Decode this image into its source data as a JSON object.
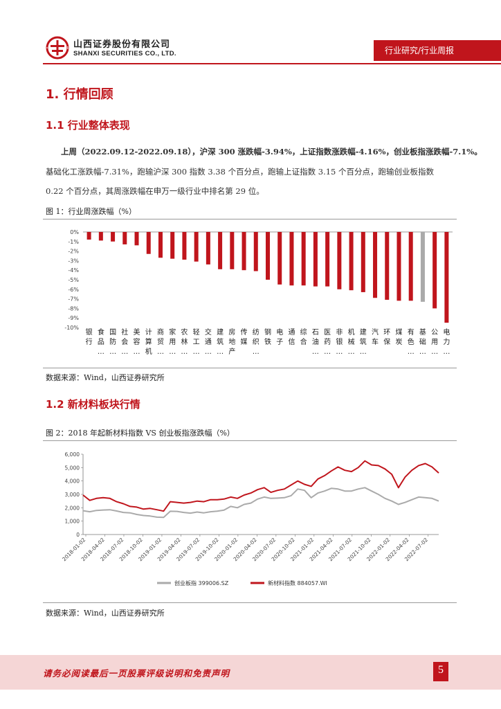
{
  "header": {
    "company_cn": "山西证券股份有限公司",
    "company_en": "SHANXI SECURITIES CO., LTD.",
    "tag": "行业研究/行业周报"
  },
  "section1": {
    "title": "1. 行情回顾"
  },
  "section1_1": {
    "title": "1.1  行业整体表现",
    "para_bold": "上周（2022.09.12-2022.09.18），沪深 300 涨跌幅-3.94%，上证指数涨跌幅-4.16%，创业板指涨跌幅-7.1%。",
    "para_line2": "基础化工涨跌幅-7.31%，跑输沪深 300 指数 3.38 个百分点，跑输上证指数 3.15 个百分点，跑输创业板指数",
    "para_line3": "0.22 个百分点，其周涨跌幅在申万一级行业中排名第 29 位。"
  },
  "figure1": {
    "title": "图 1：行业周涨跌幅（%）",
    "source": "数据来源：Wind，山西证券研究所"
  },
  "section1_2": {
    "title": "1.2 新材料板块行情"
  },
  "figure2": {
    "title": "图 2：2018 年起新材料指数 VS 创业板指涨跌幅（%）",
    "source": "数据来源：Wind，山西证券研究所"
  },
  "footer": {
    "disclaimer": "请务必阅读最后一页股票评级说明和免责声明",
    "page": "5"
  },
  "colors": {
    "accent": "#c0151c",
    "gray_series": "#aaaaaa",
    "highlight_bar": "#aaaaaa"
  },
  "chart_data": [
    {
      "type": "bar",
      "title": "行业周涨跌幅（%）",
      "ylim": [
        -10,
        0
      ],
      "yticks": [
        "0%",
        "-1%",
        "-2%",
        "-3%",
        "-4%",
        "-5%",
        "-6%",
        "-7%",
        "-8%",
        "-9%",
        "-10%"
      ],
      "categories": [
        "银行",
        "食品…",
        "国防…",
        "社会…",
        "美容…",
        "计算机",
        "商贸…",
        "家用…",
        "农林…",
        "轻工…",
        "交通…",
        "建筑…",
        "房地产",
        "传媒",
        "纺织…",
        "钢铁",
        "电子",
        "通信",
        "综合",
        "石油…",
        "医药…",
        "非银…",
        "机械…",
        "建筑…",
        "汽车",
        "环保",
        "煤炭",
        "有色…",
        "基础…",
        "公用…",
        "电力…"
      ],
      "labels": [
        [
          "银",
          "行",
          ""
        ],
        [
          "食",
          "品",
          "…"
        ],
        [
          "国",
          "防",
          "…"
        ],
        [
          "社",
          "会",
          "…"
        ],
        [
          "美",
          "容",
          "…"
        ],
        [
          "计",
          "算",
          "机"
        ],
        [
          "商",
          "贸",
          "…"
        ],
        [
          "家",
          "用",
          "…"
        ],
        [
          "农",
          "林",
          "…"
        ],
        [
          "轻",
          "工",
          "…"
        ],
        [
          "交",
          "通",
          "…"
        ],
        [
          "建",
          "筑",
          "…"
        ],
        [
          "房",
          "地",
          "产"
        ],
        [
          "传",
          "媒",
          ""
        ],
        [
          "纺",
          "织",
          "…"
        ],
        [
          "钢",
          "铁",
          ""
        ],
        [
          "电",
          "子",
          ""
        ],
        [
          "通",
          "信",
          ""
        ],
        [
          "综",
          "合",
          ""
        ],
        [
          "石",
          "油",
          "…"
        ],
        [
          "医",
          "药",
          "…"
        ],
        [
          "非",
          "银",
          "…"
        ],
        [
          "机",
          "械",
          "…"
        ],
        [
          "建",
          "筑",
          "…"
        ],
        [
          "汽",
          "车",
          ""
        ],
        [
          "环",
          "保",
          ""
        ],
        [
          "煤",
          "炭",
          ""
        ],
        [
          "有",
          "色",
          "…"
        ],
        [
          "基",
          "础",
          "…"
        ],
        [
          "公",
          "用",
          "…"
        ],
        [
          "电",
          "力",
          "…"
        ]
      ],
      "values": [
        -0.8,
        -0.9,
        -1.0,
        -1.3,
        -1.4,
        -2.3,
        -2.7,
        -2.8,
        -2.9,
        -3.1,
        -3.4,
        -3.9,
        -3.9,
        -4.0,
        -4.1,
        -5.0,
        -5.5,
        -5.6,
        -5.6,
        -5.7,
        -5.7,
        -6.0,
        -6.1,
        -6.3,
        -6.9,
        -7.1,
        -7.2,
        -7.2,
        -7.31,
        -8.0,
        -9.5
      ],
      "highlight_index": 28
    },
    {
      "type": "line",
      "title": "2018 年起新材料指数 VS 创业板指涨跌幅（%）",
      "ylim": [
        0,
        6000
      ],
      "yticks": [
        "0",
        "1,000",
        "2,000",
        "3,000",
        "4,000",
        "5,000",
        "6,000"
      ],
      "xticks": [
        "2018-01-02",
        "2018-04-02",
        "2018-07-02",
        "2018-10-02",
        "2019-01-02",
        "2019-04-02",
        "2019-07-02",
        "2019-10-02",
        "2020-01-02",
        "2020-04-02",
        "2020-07-02",
        "2020-10-02",
        "2021-01-02",
        "2021-04-02",
        "2021-07-02",
        "2021-10-02",
        "2022-01-02",
        "2022-04-02",
        "2022-07-02"
      ],
      "series": [
        {
          "name": "创业板指  399006.SZ",
          "color": "#aaaaaa",
          "values": [
            1780,
            1700,
            1800,
            1830,
            1850,
            1760,
            1650,
            1620,
            1500,
            1420,
            1380,
            1300,
            1280,
            1740,
            1730,
            1650,
            1600,
            1680,
            1620,
            1700,
            1750,
            1820,
            2100,
            2000,
            2250,
            2350,
            2650,
            2800,
            2700,
            2720,
            2750,
            2900,
            3400,
            3300,
            2750,
            3100,
            3250,
            3450,
            3400,
            3250,
            3250,
            3400,
            3500,
            3250,
            3000,
            2700,
            2500,
            2250,
            2400,
            2600,
            2800,
            2750,
            2700,
            2500
          ]
        },
        {
          "name": "新材料指数  884057.WI",
          "color": "#c0151c",
          "values": [
            2950,
            2550,
            2700,
            2750,
            2700,
            2450,
            2300,
            2100,
            2050,
            1900,
            1950,
            1850,
            1750,
            2450,
            2400,
            2350,
            2400,
            2500,
            2450,
            2600,
            2600,
            2650,
            2800,
            2700,
            2950,
            3100,
            3350,
            3500,
            3150,
            3300,
            3400,
            3700,
            4000,
            3750,
            3600,
            4150,
            4400,
            4750,
            5050,
            4800,
            4700,
            5000,
            5500,
            5200,
            5150,
            4900,
            4500,
            3500,
            4300,
            4800,
            5150,
            5300,
            5050,
            4600
          ]
        }
      ]
    }
  ]
}
